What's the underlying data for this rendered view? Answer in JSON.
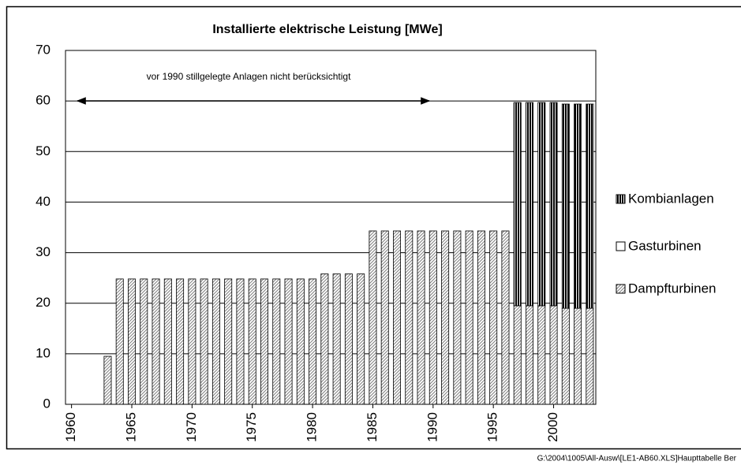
{
  "chart_data": {
    "type": "stacked-bar",
    "title": "Installierte elektrische Leistung  [MWe]",
    "annotation": "vor 1990 stillgelegte Anlagen nicht berücksichtigt",
    "footer": "G:\\2004\\1005\\All-Ausw\\[LE1-AB60.XLS]Haupttabelle  Ber",
    "categories": [
      "1960",
      null,
      null,
      null,
      null,
      "1965",
      null,
      null,
      null,
      null,
      "1970",
      null,
      null,
      null,
      null,
      "1975",
      null,
      null,
      null,
      null,
      "1980",
      null,
      null,
      null,
      null,
      "1985",
      null,
      null,
      null,
      null,
      "1990",
      null,
      null,
      null,
      null,
      "1995",
      null,
      null,
      null,
      null,
      "2000",
      null,
      null,
      null
    ],
    "series": [
      {
        "name": "Dampfturbinen",
        "color": "#808080",
        "values": [
          null,
          null,
          null,
          9.5,
          24.8,
          24.8,
          24.8,
          24.8,
          24.8,
          24.8,
          24.8,
          24.8,
          24.8,
          24.8,
          24.8,
          24.8,
          24.8,
          24.8,
          24.8,
          24.8,
          24.8,
          25.8,
          25.8,
          25.8,
          25.8,
          34.3,
          34.3,
          34.3,
          34.3,
          34.3,
          34.3,
          34.3,
          34.3,
          34.3,
          34.3,
          34.3,
          34.3,
          19.5,
          19.5,
          19.5,
          19.5,
          19.0,
          19.0,
          19.0
        ]
      },
      {
        "name": "Gasturbinen",
        "color": "#ffffff",
        "values": [
          null,
          null,
          null,
          0,
          0,
          0,
          0,
          0,
          0,
          0,
          0,
          0,
          0,
          0,
          0,
          0,
          0,
          0,
          0,
          0,
          0,
          0,
          0,
          0,
          0,
          0,
          0,
          0,
          0,
          0,
          0,
          0,
          0,
          0,
          0,
          0,
          0,
          0,
          0,
          0,
          0,
          0,
          0,
          0
        ]
      },
      {
        "name": "Kombianlagen",
        "color": "#000000",
        "values": [
          null,
          null,
          null,
          0,
          0,
          0,
          0,
          0,
          0,
          0,
          0,
          0,
          0,
          0,
          0,
          0,
          0,
          0,
          0,
          0,
          0,
          0,
          0,
          0,
          0,
          0,
          0,
          0,
          0,
          0,
          0,
          0,
          0,
          0,
          0,
          0,
          0,
          40.2,
          40.2,
          40.2,
          40.2,
          40.4,
          40.4,
          40.4
        ]
      }
    ],
    "ylim": [
      0,
      70
    ],
    "yticks": [
      0,
      10,
      20,
      30,
      40,
      50,
      60,
      70
    ],
    "grid": true
  }
}
